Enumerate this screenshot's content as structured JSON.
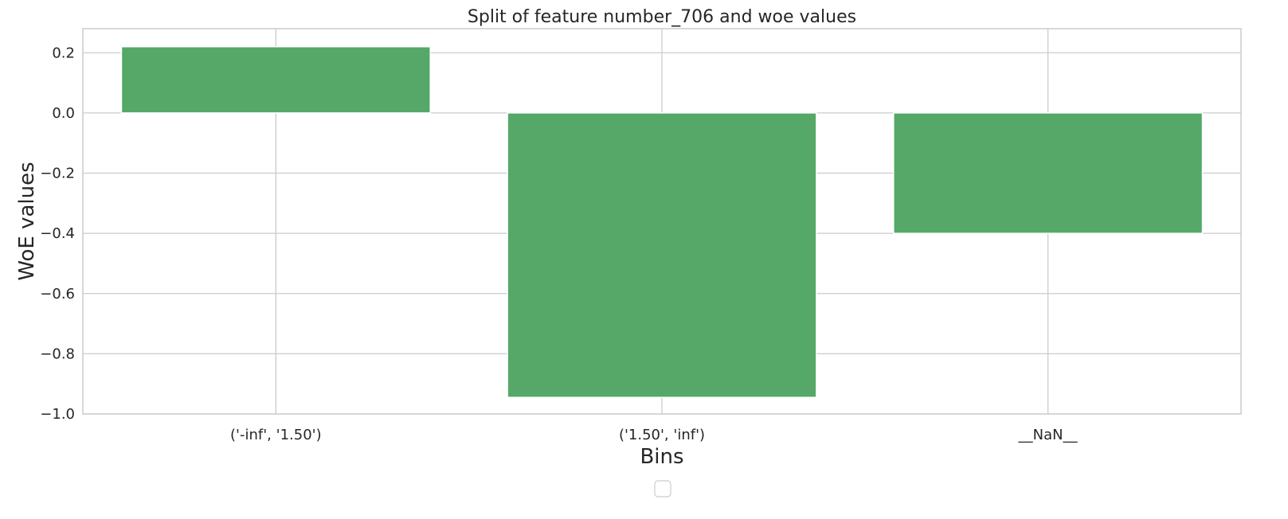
{
  "chart_data": {
    "type": "bar",
    "title": "Split of feature number_706 and woe values",
    "xlabel": "Bins",
    "ylabel": "WoE values",
    "categories": [
      "('-inf', '1.50')",
      "('1.50', 'inf')",
      "__NaN__"
    ],
    "values": [
      0.22,
      -0.945,
      -0.4
    ],
    "ylim": [
      -1.0,
      0.28
    ],
    "yticks": [
      0.2,
      0.0,
      -0.2,
      -0.4,
      -0.6,
      -0.8,
      -1.0
    ],
    "ytick_labels": [
      "0.2",
      "0.0",
      "−0.2",
      "−0.4",
      "−0.6",
      "−0.8",
      "−1.0"
    ],
    "grid": true,
    "legend": "empty, below plot",
    "bar_color": "#55a868"
  }
}
